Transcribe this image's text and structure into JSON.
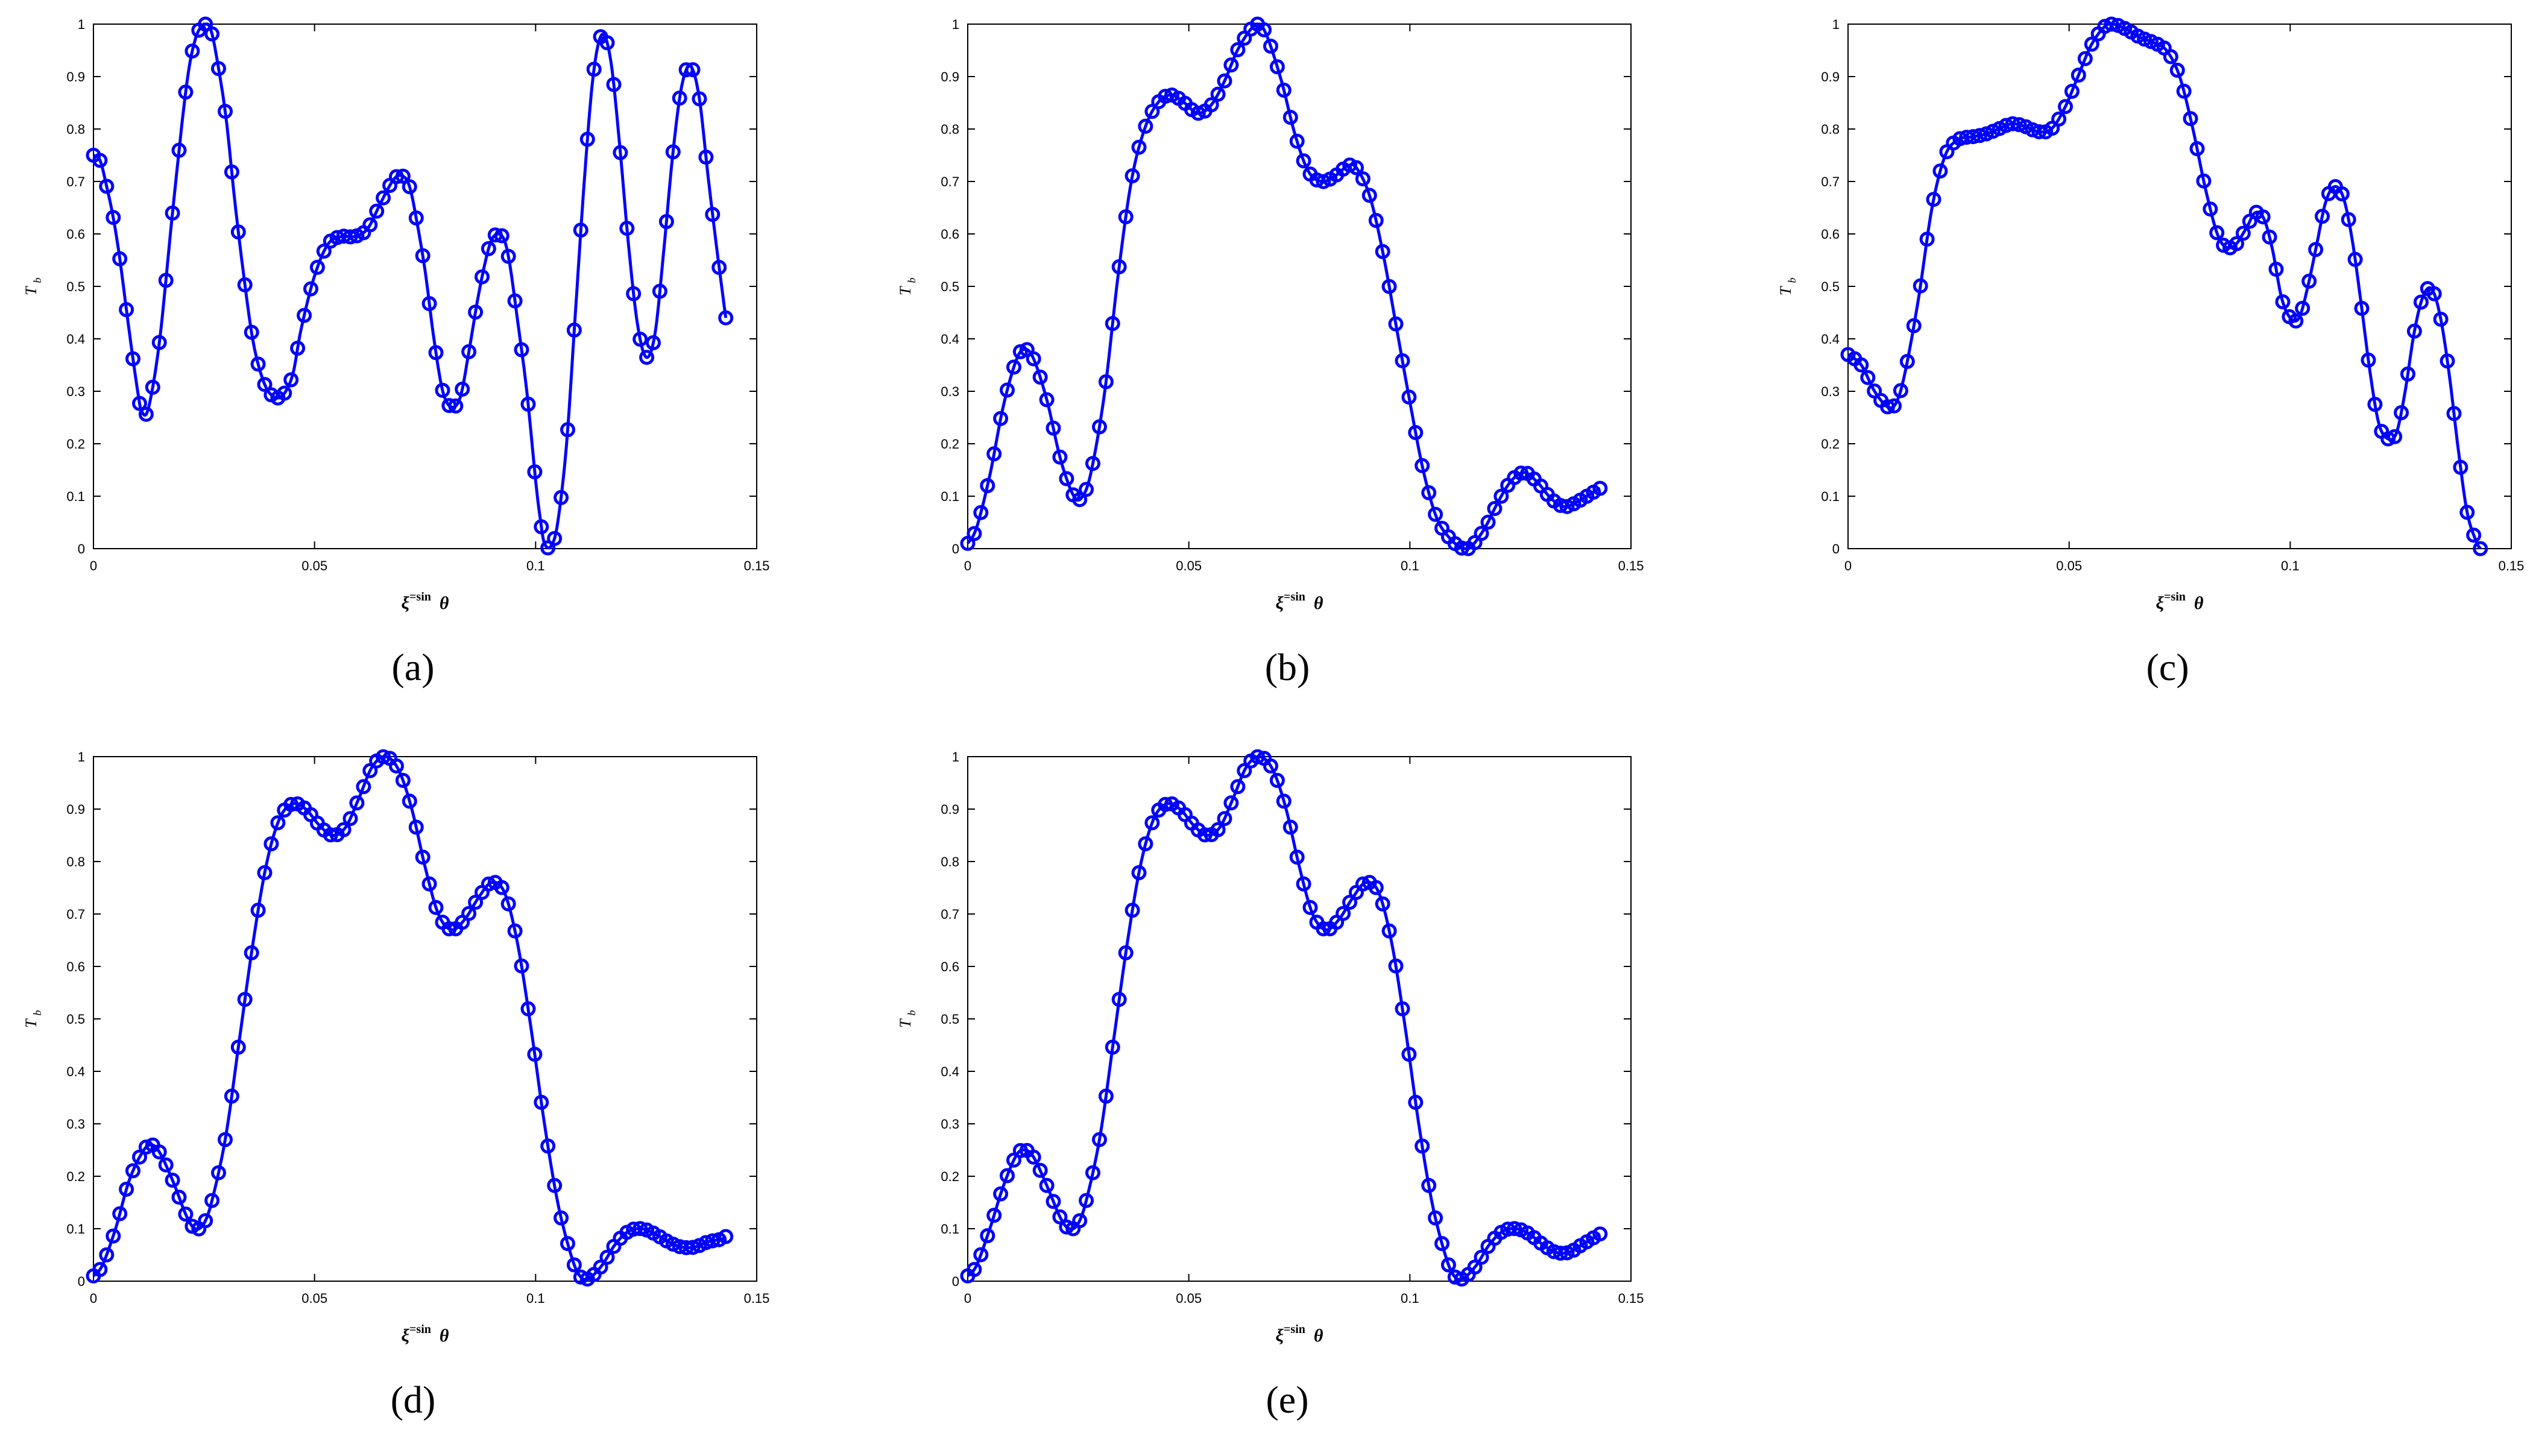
{
  "chart_data": [
    {
      "panel": "a",
      "type": "line",
      "marker": "circle",
      "color": "#0000ff",
      "ylabel": "T",
      "ylabel_sub": "b",
      "xlabel": "ξ",
      "xlabel_sup": "=sin",
      "xlabel_theta": "θ",
      "xlim": [
        0,
        0.15
      ],
      "ylim": [
        0,
        1
      ],
      "xticks": [
        "0",
        "0.05",
        "0.1",
        "0.15"
      ],
      "yticks": [
        "0",
        "0.1",
        "0.2",
        "0.3",
        "0.4",
        "0.5",
        "0.6",
        "0.7",
        "0.8",
        "0.9",
        "1"
      ],
      "knots": [
        [
          0,
          0.75
        ],
        [
          0.0015,
          0.74
        ],
        [
          0.003,
          0.69
        ],
        [
          0.0045,
          0.63
        ],
        [
          0.006,
          0.55
        ],
        [
          0.008,
          0.42
        ],
        [
          0.01,
          0.3
        ],
        [
          0.011,
          0.26
        ],
        [
          0.0125,
          0.27
        ],
        [
          0.015,
          0.4
        ],
        [
          0.018,
          0.65
        ],
        [
          0.021,
          0.88
        ],
        [
          0.023,
          0.97
        ],
        [
          0.025,
          1.0
        ],
        [
          0.0265,
          0.99
        ],
        [
          0.028,
          0.93
        ],
        [
          0.03,
          0.82
        ],
        [
          0.032,
          0.66
        ],
        [
          0.034,
          0.52
        ],
        [
          0.036,
          0.4
        ],
        [
          0.038,
          0.33
        ],
        [
          0.04,
          0.295
        ],
        [
          0.0425,
          0.29
        ],
        [
          0.045,
          0.33
        ],
        [
          0.047,
          0.42
        ],
        [
          0.05,
          0.52
        ],
        [
          0.053,
          0.58
        ],
        [
          0.056,
          0.595
        ],
        [
          0.059,
          0.595
        ],
        [
          0.062,
          0.61
        ],
        [
          0.065,
          0.66
        ],
        [
          0.068,
          0.705
        ],
        [
          0.07,
          0.71
        ],
        [
          0.0715,
          0.69
        ],
        [
          0.073,
          0.63
        ],
        [
          0.075,
          0.53
        ],
        [
          0.077,
          0.4
        ],
        [
          0.079,
          0.3
        ],
        [
          0.081,
          0.27
        ],
        [
          0.083,
          0.29
        ],
        [
          0.085,
          0.38
        ],
        [
          0.087,
          0.48
        ],
        [
          0.089,
          0.56
        ],
        [
          0.0905,
          0.595
        ],
        [
          0.0925,
          0.595
        ],
        [
          0.094,
          0.55
        ],
        [
          0.096,
          0.43
        ],
        [
          0.098,
          0.3
        ],
        [
          0.1,
          0.13
        ],
        [
          0.101,
          0.06
        ],
        [
          0.102,
          0.01
        ],
        [
          0.1035,
          0.005
        ],
        [
          0.105,
          0.05
        ],
        [
          0.107,
          0.2
        ],
        [
          0.109,
          0.45
        ],
        [
          0.111,
          0.7
        ],
        [
          0.113,
          0.9
        ],
        [
          0.115,
          0.98
        ],
        [
          0.117,
          0.93
        ],
        [
          0.119,
          0.77
        ],
        [
          0.121,
          0.58
        ],
        [
          0.123,
          0.43
        ],
        [
          0.125,
          0.365
        ],
        [
          0.127,
          0.41
        ],
        [
          0.129,
          0.57
        ],
        [
          0.131,
          0.75
        ],
        [
          0.133,
          0.88
        ],
        [
          0.135,
          0.92
        ],
        [
          0.137,
          0.86
        ],
        [
          0.139,
          0.71
        ],
        [
          0.141,
          0.57
        ],
        [
          0.143,
          0.44
        ]
      ]
    },
    {
      "panel": "b",
      "type": "line",
      "marker": "circle",
      "color": "#0000ff",
      "ylabel": "T",
      "ylabel_sub": "b",
      "xlabel": "ξ",
      "xlabel_sup": "=sin",
      "xlabel_theta": "θ",
      "xlim": [
        0,
        0.15
      ],
      "ylim": [
        0,
        1
      ],
      "xticks": [
        "0",
        "0.05",
        "0.1",
        "0.15"
      ],
      "yticks": [
        "0",
        "0.1",
        "0.2",
        "0.3",
        "0.4",
        "0.5",
        "0.6",
        "0.7",
        "0.8",
        "0.9",
        "1"
      ],
      "knots": [
        [
          0,
          0.01
        ],
        [
          0.002,
          0.04
        ],
        [
          0.005,
          0.14
        ],
        [
          0.008,
          0.27
        ],
        [
          0.011,
          0.36
        ],
        [
          0.013,
          0.38
        ],
        [
          0.015,
          0.36
        ],
        [
          0.018,
          0.28
        ],
        [
          0.021,
          0.17
        ],
        [
          0.024,
          0.1
        ],
        [
          0.026,
          0.1
        ],
        [
          0.028,
          0.15
        ],
        [
          0.031,
          0.3
        ],
        [
          0.034,
          0.52
        ],
        [
          0.037,
          0.7
        ],
        [
          0.04,
          0.8
        ],
        [
          0.043,
          0.85
        ],
        [
          0.046,
          0.865
        ],
        [
          0.049,
          0.85
        ],
        [
          0.052,
          0.83
        ],
        [
          0.055,
          0.845
        ],
        [
          0.058,
          0.89
        ],
        [
          0.061,
          0.95
        ],
        [
          0.064,
          0.99
        ],
        [
          0.066,
          1.0
        ],
        [
          0.068,
          0.97
        ],
        [
          0.071,
          0.89
        ],
        [
          0.074,
          0.79
        ],
        [
          0.077,
          0.72
        ],
        [
          0.08,
          0.7
        ],
        [
          0.083,
          0.71
        ],
        [
          0.086,
          0.73
        ],
        [
          0.088,
          0.725
        ],
        [
          0.091,
          0.67
        ],
        [
          0.094,
          0.56
        ],
        [
          0.097,
          0.42
        ],
        [
          0.1,
          0.28
        ],
        [
          0.103,
          0.15
        ],
        [
          0.106,
          0.06
        ],
        [
          0.109,
          0.02
        ],
        [
          0.112,
          0.0
        ],
        [
          0.114,
          0.005
        ],
        [
          0.117,
          0.04
        ],
        [
          0.12,
          0.09
        ],
        [
          0.123,
          0.13
        ],
        [
          0.126,
          0.145
        ],
        [
          0.129,
          0.125
        ],
        [
          0.132,
          0.095
        ],
        [
          0.135,
          0.08
        ],
        [
          0.138,
          0.09
        ],
        [
          0.141,
          0.105
        ],
        [
          0.143,
          0.115
        ]
      ]
    },
    {
      "panel": "c",
      "type": "line",
      "marker": "circle",
      "color": "#0000ff",
      "ylabel": "T",
      "ylabel_sub": "b",
      "xlabel": "ξ",
      "xlabel_sup": "=sin",
      "xlabel_theta": "θ",
      "xlim": [
        0,
        0.15
      ],
      "ylim": [
        0,
        1
      ],
      "xticks": [
        "0",
        "0.05",
        "0.1",
        "0.15"
      ],
      "yticks": [
        "0",
        "0.1",
        "0.2",
        "0.3",
        "0.4",
        "0.5",
        "0.6",
        "0.7",
        "0.8",
        "0.9",
        "1"
      ],
      "knots": [
        [
          0,
          0.37
        ],
        [
          0.003,
          0.35
        ],
        [
          0.006,
          0.3
        ],
        [
          0.009,
          0.27
        ],
        [
          0.011,
          0.28
        ],
        [
          0.013,
          0.34
        ],
        [
          0.016,
          0.48
        ],
        [
          0.019,
          0.65
        ],
        [
          0.022,
          0.75
        ],
        [
          0.025,
          0.78
        ],
        [
          0.028,
          0.785
        ],
        [
          0.031,
          0.79
        ],
        [
          0.034,
          0.8
        ],
        [
          0.037,
          0.81
        ],
        [
          0.04,
          0.805
        ],
        [
          0.043,
          0.795
        ],
        [
          0.046,
          0.8
        ],
        [
          0.049,
          0.84
        ],
        [
          0.052,
          0.9
        ],
        [
          0.055,
          0.96
        ],
        [
          0.058,
          0.995
        ],
        [
          0.06,
          1.0
        ],
        [
          0.063,
          0.99
        ],
        [
          0.066,
          0.975
        ],
        [
          0.069,
          0.965
        ],
        [
          0.072,
          0.95
        ],
        [
          0.075,
          0.9
        ],
        [
          0.078,
          0.8
        ],
        [
          0.081,
          0.68
        ],
        [
          0.084,
          0.59
        ],
        [
          0.087,
          0.575
        ],
        [
          0.09,
          0.61
        ],
        [
          0.092,
          0.64
        ],
        [
          0.094,
          0.63
        ],
        [
          0.096,
          0.57
        ],
        [
          0.098,
          0.48
        ],
        [
          0.1,
          0.44
        ],
        [
          0.102,
          0.44
        ],
        [
          0.104,
          0.5
        ],
        [
          0.106,
          0.58
        ],
        [
          0.108,
          0.66
        ],
        [
          0.11,
          0.69
        ],
        [
          0.112,
          0.67
        ],
        [
          0.114,
          0.59
        ],
        [
          0.116,
          0.47
        ],
        [
          0.118,
          0.34
        ],
        [
          0.12,
          0.24
        ],
        [
          0.122,
          0.21
        ],
        [
          0.124,
          0.22
        ],
        [
          0.126,
          0.3
        ],
        [
          0.128,
          0.41
        ],
        [
          0.13,
          0.48
        ],
        [
          0.132,
          0.495
        ],
        [
          0.134,
          0.44
        ],
        [
          0.136,
          0.33
        ],
        [
          0.138,
          0.19
        ],
        [
          0.14,
          0.07
        ],
        [
          0.142,
          0.015
        ],
        [
          0.143,
          0.0
        ]
      ]
    },
    {
      "panel": "d",
      "type": "line",
      "marker": "circle",
      "color": "#0000ff",
      "ylabel": "T",
      "ylabel_sub": "b",
      "xlabel": "ξ",
      "xlabel_sup": "=sin",
      "xlabel_theta": "θ",
      "xlim": [
        0,
        0.15
      ],
      "ylim": [
        0,
        1
      ],
      "xticks": [
        "0",
        "0.05",
        "0.1",
        "0.15"
      ],
      "yticks": [
        "0",
        "0.1",
        "0.2",
        "0.3",
        "0.4",
        "0.5",
        "0.6",
        "0.7",
        "0.8",
        "0.9",
        "1"
      ],
      "knots": [
        [
          0,
          0.01
        ],
        [
          0.002,
          0.03
        ],
        [
          0.005,
          0.1
        ],
        [
          0.008,
          0.19
        ],
        [
          0.011,
          0.245
        ],
        [
          0.013,
          0.26
        ],
        [
          0.015,
          0.245
        ],
        [
          0.018,
          0.19
        ],
        [
          0.021,
          0.125
        ],
        [
          0.023,
          0.1
        ],
        [
          0.025,
          0.11
        ],
        [
          0.027,
          0.16
        ],
        [
          0.03,
          0.28
        ],
        [
          0.033,
          0.46
        ],
        [
          0.036,
          0.64
        ],
        [
          0.039,
          0.79
        ],
        [
          0.042,
          0.88
        ],
        [
          0.045,
          0.91
        ],
        [
          0.048,
          0.9
        ],
        [
          0.051,
          0.87
        ],
        [
          0.054,
          0.85
        ],
        [
          0.057,
          0.865
        ],
        [
          0.06,
          0.92
        ],
        [
          0.063,
          0.98
        ],
        [
          0.066,
          1.0
        ],
        [
          0.069,
          0.975
        ],
        [
          0.072,
          0.9
        ],
        [
          0.075,
          0.79
        ],
        [
          0.078,
          0.7
        ],
        [
          0.081,
          0.67
        ],
        [
          0.084,
          0.69
        ],
        [
          0.087,
          0.73
        ],
        [
          0.09,
          0.76
        ],
        [
          0.093,
          0.74
        ],
        [
          0.096,
          0.64
        ],
        [
          0.099,
          0.48
        ],
        [
          0.102,
          0.3
        ],
        [
          0.105,
          0.15
        ],
        [
          0.108,
          0.05
        ],
        [
          0.11,
          0.01
        ],
        [
          0.112,
          0.005
        ],
        [
          0.115,
          0.03
        ],
        [
          0.118,
          0.07
        ],
        [
          0.121,
          0.095
        ],
        [
          0.124,
          0.1
        ],
        [
          0.127,
          0.09
        ],
        [
          0.13,
          0.075
        ],
        [
          0.133,
          0.065
        ],
        [
          0.136,
          0.065
        ],
        [
          0.139,
          0.075
        ],
        [
          0.142,
          0.08
        ],
        [
          0.143,
          0.085
        ]
      ]
    },
    {
      "panel": "e",
      "type": "line",
      "marker": "circle",
      "color": "#0000ff",
      "ylabel": "T",
      "ylabel_sub": "b",
      "xlabel": "ξ",
      "xlabel_sup": "=sin",
      "xlabel_theta": "θ",
      "xlim": [
        0,
        0.15
      ],
      "ylim": [
        0,
        1
      ],
      "xticks": [
        "0",
        "0.05",
        "0.1",
        "0.15"
      ],
      "yticks": [
        "0",
        "0.1",
        "0.2",
        "0.3",
        "0.4",
        "0.5",
        "0.6",
        "0.7",
        "0.8",
        "0.9",
        "1"
      ],
      "knots": [
        [
          0,
          0.01
        ],
        [
          0.002,
          0.03
        ],
        [
          0.005,
          0.1
        ],
        [
          0.008,
          0.18
        ],
        [
          0.011,
          0.24
        ],
        [
          0.013,
          0.25
        ],
        [
          0.015,
          0.235
        ],
        [
          0.018,
          0.18
        ],
        [
          0.021,
          0.12
        ],
        [
          0.023,
          0.1
        ],
        [
          0.025,
          0.11
        ],
        [
          0.027,
          0.16
        ],
        [
          0.03,
          0.28
        ],
        [
          0.033,
          0.46
        ],
        [
          0.036,
          0.64
        ],
        [
          0.039,
          0.79
        ],
        [
          0.042,
          0.88
        ],
        [
          0.045,
          0.91
        ],
        [
          0.048,
          0.9
        ],
        [
          0.051,
          0.87
        ],
        [
          0.054,
          0.85
        ],
        [
          0.057,
          0.865
        ],
        [
          0.06,
          0.92
        ],
        [
          0.063,
          0.98
        ],
        [
          0.066,
          1.0
        ],
        [
          0.069,
          0.975
        ],
        [
          0.072,
          0.9
        ],
        [
          0.075,
          0.79
        ],
        [
          0.078,
          0.7
        ],
        [
          0.081,
          0.67
        ],
        [
          0.084,
          0.69
        ],
        [
          0.087,
          0.73
        ],
        [
          0.09,
          0.76
        ],
        [
          0.093,
          0.74
        ],
        [
          0.096,
          0.64
        ],
        [
          0.099,
          0.48
        ],
        [
          0.102,
          0.3
        ],
        [
          0.105,
          0.15
        ],
        [
          0.108,
          0.05
        ],
        [
          0.11,
          0.01
        ],
        [
          0.112,
          0.005
        ],
        [
          0.115,
          0.03
        ],
        [
          0.118,
          0.07
        ],
        [
          0.121,
          0.095
        ],
        [
          0.124,
          0.1
        ],
        [
          0.127,
          0.09
        ],
        [
          0.13,
          0.07
        ],
        [
          0.133,
          0.055
        ],
        [
          0.136,
          0.055
        ],
        [
          0.139,
          0.07
        ],
        [
          0.142,
          0.085
        ],
        [
          0.143,
          0.09
        ]
      ]
    }
  ],
  "captions": [
    "(a)",
    "(b)",
    "(c)",
    "(d)",
    "(e)"
  ]
}
